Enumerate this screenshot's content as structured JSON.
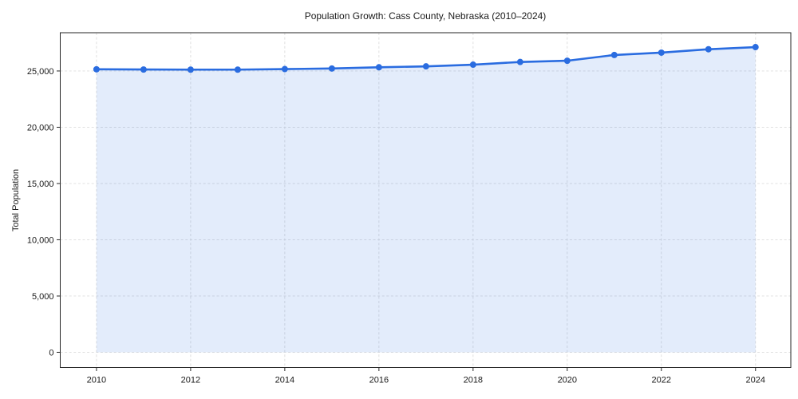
{
  "figure": {
    "title": "Population Growth: Cass County, Nebraska (2010–2024)",
    "ylabel": "Total Population"
  },
  "chart_data": {
    "type": "area",
    "title": "Population Growth: Cass County, Nebraska (2010–2024)",
    "xlabel": "",
    "ylabel": "Total Population",
    "x": [
      2010,
      2011,
      2012,
      2013,
      2014,
      2015,
      2016,
      2017,
      2018,
      2019,
      2020,
      2021,
      2022,
      2023,
      2024
    ],
    "series": [
      {
        "name": "Total Population",
        "values": [
          25150,
          25130,
          25120,
          25120,
          25170,
          25220,
          25330,
          25410,
          25560,
          25800,
          25910,
          26420,
          26630,
          26930,
          27120
        ]
      }
    ],
    "xticks": [
      2010,
      2012,
      2014,
      2016,
      2018,
      2020,
      2022,
      2024
    ],
    "yticks": [
      0,
      5000,
      10000,
      15000,
      20000,
      25000
    ],
    "ytick_labels": [
      "0",
      "5,000",
      "10,000",
      "15,000",
      "20,000",
      "25,000"
    ],
    "xlim": [
      2009.23,
      2024.75
    ],
    "ylim": [
      -1350,
      28400
    ],
    "grid": true,
    "grid_style": "dashed",
    "legend": false,
    "marker": "circle",
    "marker_size": 4,
    "line_width": 2.6,
    "colors": {
      "line": "#2a6ce0",
      "marker": "#2a6ce0",
      "fill": "#2a6ce0",
      "fill_opacity": 0.13,
      "grid": "#dcdcdc",
      "spine": "#262626",
      "tick": "#262626",
      "text": "#1a1a1a",
      "background": "#ffffff"
    }
  }
}
